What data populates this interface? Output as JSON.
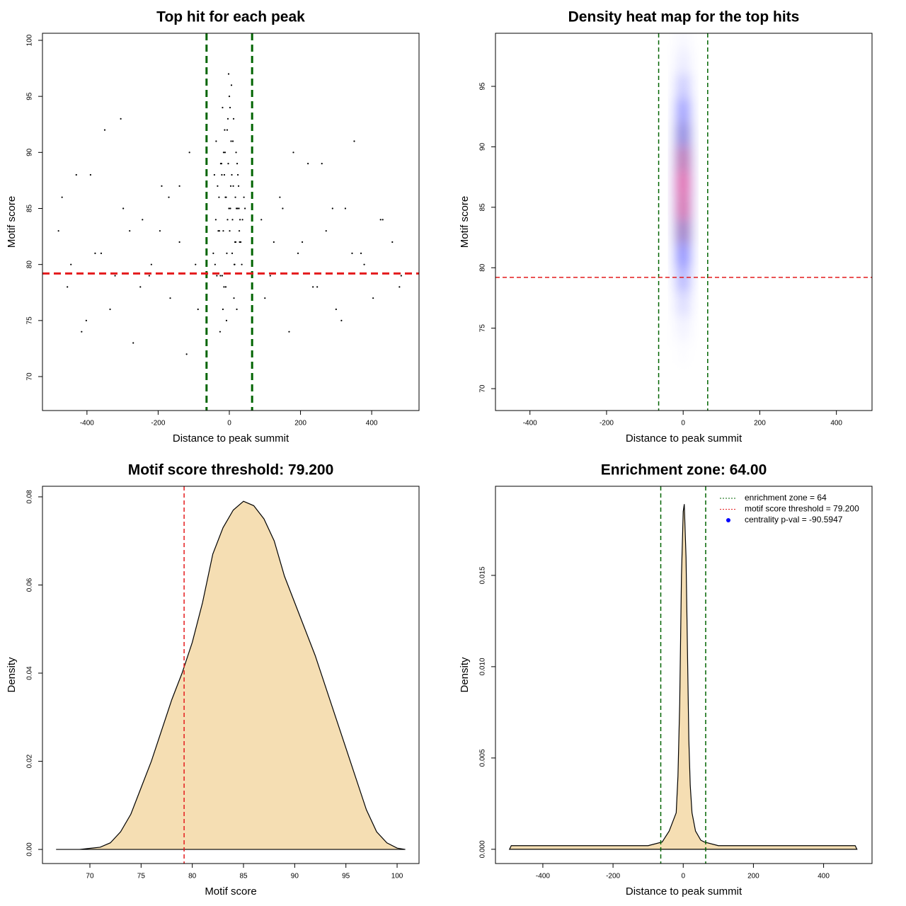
{
  "chart_data": [
    {
      "type": "scatter",
      "title": "Top hit for each peak",
      "xlabel": "Distance to peak summit",
      "ylabel": "Motif score",
      "x": [
        3,
        -12,
        18,
        -25,
        7,
        -4,
        30,
        -18,
        11,
        -7,
        22,
        -31,
        0,
        14,
        -9,
        5,
        -15,
        27,
        -2,
        9,
        -21,
        16,
        -6,
        35,
        -11,
        2,
        -28,
        13,
        -3,
        20,
        -16,
        8,
        -38,
        4,
        -8,
        24,
        -13,
        1,
        17,
        -20,
        6,
        -1,
        29,
        -24,
        10,
        -5,
        15,
        -33,
        12,
        -10,
        41,
        -14,
        -26,
        19,
        -17,
        23,
        -45,
        26,
        -19,
        32,
        -35,
        37,
        -22,
        -29,
        21,
        -37,
        28,
        -42,
        44,
        -40,
        -480,
        -455,
        -430,
        -402,
        -377,
        -350,
        -321,
        -298,
        -270,
        -244,
        -219,
        -190,
        -166,
        -140,
        -112,
        -88,
        90,
        115,
        142,
        168,
        193,
        221,
        247,
        272,
        300,
        326,
        351,
        379,
        404,
        431,
        458,
        483,
        -470,
        -415,
        -360,
        -305,
        -250,
        -195,
        -140,
        -95,
        100,
        150,
        205,
        260,
        315,
        370,
        425,
        478,
        -445,
        -390,
        -335,
        -280,
        -225,
        -170,
        -120,
        125,
        180,
        235,
        290,
        345
      ],
      "y": [
        85,
        90,
        82,
        79,
        88,
        93,
        84,
        76,
        87,
        81,
        89,
        83,
        95,
        80,
        86,
        91,
        78,
        85,
        97,
        84,
        88,
        82,
        92,
        80,
        86,
        94,
        83,
        77,
        89,
        85,
        90,
        81,
        84,
        87,
        75,
        88,
        92,
        83,
        86,
        79,
        96,
        85,
        82,
        89,
        91,
        84,
        80,
        87,
        93,
        78,
        86,
        88,
        74,
        90,
        83,
        85,
        81,
        87,
        94,
        82,
        79,
        84,
        89,
        86,
        76,
        91,
        83,
        88,
        85,
        80,
        83,
        78,
        88,
        75,
        81,
        92,
        79,
        85,
        73,
        84,
        80,
        87,
        77,
        82,
        90,
        76,
        84,
        79,
        86,
        74,
        81,
        89,
        78,
        83,
        76,
        85,
        91,
        80,
        77,
        84,
        82,
        79,
        86,
        74,
        81,
        93,
        78,
        83,
        87,
        80,
        77,
        85,
        82,
        89,
        75,
        81,
        84,
        78,
        80,
        88,
        76,
        83,
        79,
        86,
        72,
        82,
        90,
        78,
        85,
        81
      ],
      "color": "#000000",
      "xlim": [
        -525,
        533
      ],
      "ylim": [
        66.97,
        100.63
      ],
      "xticks": [
        -400,
        -200,
        0,
        200,
        400
      ],
      "yticks": [
        70,
        75,
        80,
        85,
        90,
        95,
        100
      ],
      "vlines": [
        -64,
        64
      ],
      "vline_color": "#006400",
      "hlines": [
        79.2
      ],
      "hline_color": "#e41a1c"
    },
    {
      "type": "heatmap",
      "title": "Density heat map for the top hits",
      "xlabel": "Distance to peak summit",
      "ylabel": "Motif score",
      "x": [
        -15,
        -5,
        5,
        15
      ],
      "y": [
        73,
        75,
        77,
        79,
        81,
        83,
        85,
        87,
        89,
        91,
        93,
        95,
        97,
        99
      ],
      "z": [
        [
          0,
          0.01,
          0.01,
          0
        ],
        [
          0.01,
          0.03,
          0.03,
          0.01
        ],
        [
          0.02,
          0.09,
          0.09,
          0.02
        ],
        [
          0.04,
          0.21,
          0.21,
          0.04
        ],
        [
          0.08,
          0.39,
          0.39,
          0.08
        ],
        [
          0.13,
          0.61,
          0.61,
          0.13
        ],
        [
          0.16,
          0.78,
          0.78,
          0.16
        ],
        [
          0.17,
          0.81,
          0.81,
          0.17
        ],
        [
          0.15,
          0.71,
          0.71,
          0.15
        ],
        [
          0.1,
          0.5,
          0.5,
          0.1
        ],
        [
          0.06,
          0.29,
          0.29,
          0.06
        ],
        [
          0.03,
          0.14,
          0.14,
          0.03
        ],
        [
          0.01,
          0.05,
          0.05,
          0.01
        ],
        [
          0,
          0.02,
          0.02,
          0
        ]
      ],
      "colors": [
        "#ffffff",
        "#0000ff",
        "#ff0000"
      ],
      "xlim": [
        -490,
        493
      ],
      "ylim": [
        68.19,
        99.39
      ],
      "xticks": [
        -400,
        -200,
        0,
        200,
        400
      ],
      "yticks": [
        70,
        75,
        80,
        85,
        90,
        95
      ],
      "vlines": [
        -64,
        64
      ],
      "vline_color": "#006400",
      "hlines": [
        79.2
      ],
      "hline_color": "#e41a1c"
    },
    {
      "type": "area",
      "title": "Motif score threshold: 79.200",
      "xlabel": "Motif score",
      "ylabel": "Density",
      "x": [
        66.7,
        69,
        71,
        72,
        73,
        74,
        75,
        76,
        77,
        78,
        79,
        80,
        81,
        82,
        83,
        84,
        85,
        86,
        87,
        88,
        89,
        90,
        91,
        92,
        93,
        94,
        95,
        96,
        97,
        98,
        99,
        100,
        100.8
      ],
      "values": [
        0,
        0,
        0.0005,
        0.0015,
        0.004,
        0.008,
        0.014,
        0.02,
        0.027,
        0.034,
        0.04,
        0.047,
        0.056,
        0.067,
        0.073,
        0.077,
        0.079,
        0.078,
        0.075,
        0.07,
        0.062,
        0.056,
        0.05,
        0.044,
        0.037,
        0.03,
        0.023,
        0.016,
        0.009,
        0.004,
        0.0015,
        0.0003,
        0
      ],
      "color": "#f5deb3",
      "xlim": [
        65.37,
        102.14
      ],
      "ylim": [
        -0.0032,
        0.0824
      ],
      "xticks": [
        70,
        75,
        80,
        85,
        90,
        95,
        100
      ],
      "yticks": [
        {
          "value": 0,
          "label": "0.00"
        },
        {
          "value": 0.02,
          "label": "0.02"
        },
        {
          "value": 0.04,
          "label": "0.04"
        },
        {
          "value": 0.06,
          "label": "0.06"
        },
        {
          "value": 0.08,
          "label": "0.08"
        }
      ],
      "vlines": [
        79.2
      ],
      "vline_color": "#e41a1c"
    },
    {
      "type": "area",
      "title": "Enrichment zone: 64.00",
      "xlabel": "Distance to peak summit",
      "ylabel": "Density",
      "x": [
        -495,
        -490,
        -300,
        -100,
        -60,
        -40,
        -30,
        -20,
        -15,
        -10,
        -5,
        0,
        3,
        8,
        12,
        16,
        20,
        25,
        35,
        50,
        60,
        100,
        300,
        490,
        495
      ],
      "values": [
        0,
        0.0002,
        0.0002,
        0.0002,
        0.0004,
        0.001,
        0.0015,
        0.002,
        0.004,
        0.008,
        0.015,
        0.0185,
        0.0189,
        0.016,
        0.011,
        0.006,
        0.0035,
        0.002,
        0.001,
        0.0005,
        0.0004,
        0.0002,
        0.0002,
        0.0002,
        0
      ],
      "color": "#f5deb3",
      "xlim": [
        -535,
        538
      ],
      "ylim": [
        -0.00078,
        0.01988
      ],
      "xticks": [
        -400,
        -200,
        0,
        200,
        400
      ],
      "yticks": [
        {
          "value": 0,
          "label": "0.000"
        },
        {
          "value": 0.005,
          "label": "0.005"
        },
        {
          "value": 0.01,
          "label": "0.010"
        },
        {
          "value": 0.015,
          "label": "0.015"
        }
      ],
      "vlines": [
        -64,
        64
      ],
      "vline_color": "#006400",
      "legend_position": "top-right",
      "legend": [
        {
          "label": "enrichment zone = 64",
          "color": "#006400",
          "marker": "line"
        },
        {
          "label": "motif score threshold = 79.200",
          "color": "#e41a1c",
          "marker": "line"
        },
        {
          "label": "centrality p-val = -90.5947",
          "color": "#0000ff",
          "marker": "dot"
        }
      ]
    }
  ]
}
